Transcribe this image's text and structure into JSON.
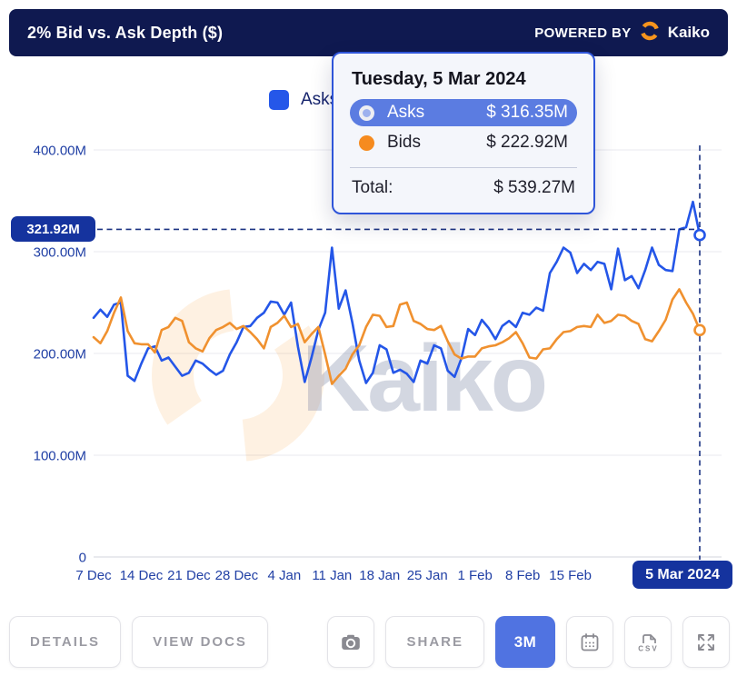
{
  "header": {
    "title": "2% Bid vs. Ask Depth ($)",
    "powered_by": "POWERED BY",
    "brand": "Kaiko"
  },
  "legend": {
    "asks_label": "Asks"
  },
  "tooltip": {
    "title": "Tuesday, 5 Mar 2024",
    "rows": [
      {
        "label": "Asks",
        "value": "$ 316.35M"
      },
      {
        "label": "Bids",
        "value": "$ 222.92M"
      }
    ],
    "total_label": "Total:",
    "total_value": "$ 539.27M"
  },
  "watermark": {
    "text": "Kaiko"
  },
  "toolbar": {
    "details_label": "DETAILS",
    "view_docs_label": "VIEW DOCS",
    "share_label": "SHARE",
    "range_label": "3M",
    "csv_label": "CSV"
  },
  "colors": {
    "header_navy": "#0f1950",
    "badge_blue": "#15339e",
    "asks_line": "#2456e8",
    "bids_line": "#f0912f",
    "axis_text": "#2140a5",
    "accent_button": "#5073e1",
    "tooltip_highlight": "#5b7ce1"
  },
  "chart_data": {
    "type": "line",
    "title": "2% Bid vs. Ask Depth ($)",
    "x_unit": "day",
    "x_start": "2023-12-07",
    "x_end": "2024-03-05",
    "ylim": [
      0,
      400
    ],
    "y_unit": "millions USD",
    "grid": "horizontal",
    "legend_position": "top-center",
    "y_ticks": [
      {
        "value": 0,
        "label": "0"
      },
      {
        "value": 100,
        "label": "100.00M"
      },
      {
        "value": 200,
        "label": "200.00M"
      },
      {
        "value": 300,
        "label": "300.00M"
      },
      {
        "value": 400,
        "label": "400.00M"
      }
    ],
    "x_ticks": [
      {
        "day": 0,
        "label": "7 Dec"
      },
      {
        "day": 7,
        "label": "14 Dec"
      },
      {
        "day": 14,
        "label": "21 Dec"
      },
      {
        "day": 21,
        "label": "28 Dec"
      },
      {
        "day": 28,
        "label": "4 Jan"
      },
      {
        "day": 35,
        "label": "11 Jan"
      },
      {
        "day": 42,
        "label": "18 Jan"
      },
      {
        "day": 49,
        "label": "25 Jan"
      },
      {
        "day": 56,
        "label": "1 Feb"
      },
      {
        "day": 63,
        "label": "8 Feb"
      },
      {
        "day": 70,
        "label": "15 Feb"
      }
    ],
    "series": [
      {
        "name": "Asks",
        "color": "#2456e8",
        "values": [
          235,
          243,
          236,
          248,
          250,
          178,
          173,
          190,
          205,
          207,
          193,
          196,
          187,
          178,
          181,
          193,
          190,
          184,
          179,
          183,
          199,
          211,
          226,
          227,
          235,
          240,
          251,
          250,
          238,
          250,
          207,
          172,
          196,
          223,
          240,
          304,
          244,
          262,
          230,
          193,
          171,
          181,
          208,
          204,
          181,
          184,
          180,
          172,
          193,
          190,
          208,
          205,
          183,
          177,
          195,
          224,
          218,
          233,
          225,
          214,
          227,
          232,
          226,
          240,
          238,
          245,
          242,
          279,
          290,
          304,
          299,
          279,
          288,
          282,
          290,
          288,
          263,
          303,
          272,
          276,
          264,
          282,
          304,
          287,
          282,
          281,
          322,
          324,
          349,
          316.35
        ]
      },
      {
        "name": "Bids",
        "color": "#f0912f",
        "values": [
          216,
          210,
          222,
          240,
          255,
          222,
          210,
          209,
          209,
          201,
          223,
          226,
          235,
          232,
          211,
          205,
          202,
          215,
          223,
          226,
          230,
          224,
          227,
          221,
          214,
          205,
          226,
          230,
          237,
          226,
          229,
          211,
          219,
          226,
          199,
          170,
          178,
          185,
          199,
          208,
          226,
          238,
          237,
          226,
          227,
          248,
          250,
          232,
          229,
          224,
          223,
          227,
          212,
          199,
          195,
          197,
          197,
          205,
          207,
          208,
          211,
          215,
          221,
          210,
          196,
          195,
          204,
          205,
          214,
          221,
          222,
          226,
          227,
          226,
          238,
          230,
          232,
          238,
          237,
          232,
          229,
          214,
          212,
          222,
          233,
          253,
          263,
          250,
          239,
          222.92
        ]
      }
    ],
    "crosshair": {
      "x_index": 89,
      "y_value": 321.92,
      "y_badge_label": "321.92M",
      "x_badge_label": "5 Mar 2024",
      "marker_values": [
        316.35,
        222.92
      ]
    }
  }
}
